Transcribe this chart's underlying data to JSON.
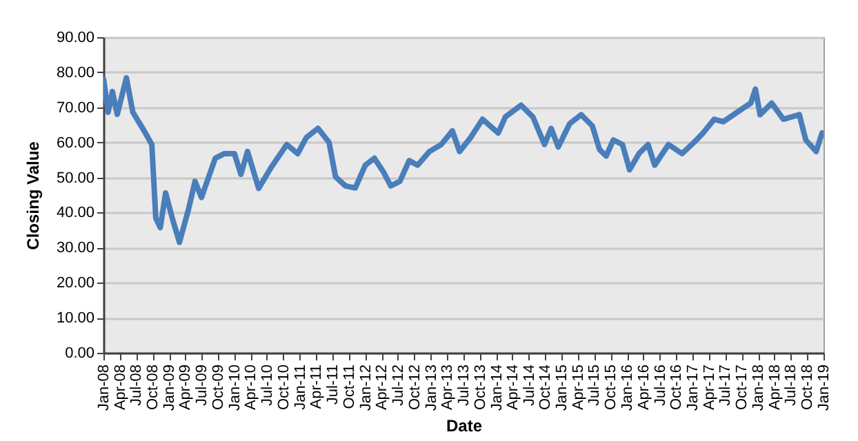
{
  "chart_data": {
    "type": "line",
    "xlabel": "Date",
    "ylabel": "Closing Value",
    "grid": "y",
    "x": [
      "2008-01-02",
      "2008-01-27",
      "2008-02-20",
      "2008-03-18",
      "2008-05-08",
      "2008-06-13",
      "2008-08-07",
      "2008-09-27",
      "2008-10-19",
      "2008-11-13",
      "2008-12-13",
      "2009-01-19",
      "2009-02-28",
      "2009-04-20",
      "2009-05-26",
      "2009-07-01",
      "2009-09-16",
      "2009-11-06",
      "2010-01-01",
      "2010-02-06",
      "2010-03-15",
      "2010-05-16",
      "2010-07-24",
      "2010-10-20",
      "2010-12-20",
      "2011-02-06",
      "2011-04-12",
      "2011-06-13",
      "2011-07-19",
      "2011-09-12",
      "2011-11-06",
      "2012-01-01",
      "2012-02-21",
      "2012-04-12",
      "2012-05-22",
      "2012-07-12",
      "2012-09-02",
      "2012-10-19",
      "2012-12-24",
      "2013-02-28",
      "2013-05-01",
      "2013-06-10",
      "2013-08-11",
      "2013-10-16",
      "2014-01-12",
      "2014-02-21",
      "2014-05-19",
      "2014-07-24",
      "2014-09-27",
      "2014-11-03",
      "2014-12-13",
      "2015-02-14",
      "2015-04-20",
      "2015-06-21",
      "2015-07-31",
      "2015-09-06",
      "2015-10-16",
      "2015-12-06",
      "2016-01-15",
      "2016-03-07",
      "2016-04-27",
      "2016-06-03",
      "2016-08-19",
      "2016-11-03",
      "2017-01-08",
      "2017-02-28",
      "2017-05-01",
      "2017-06-21",
      "2017-09-06",
      "2017-11-21",
      "2017-12-17",
      "2018-01-12",
      "2018-03-18",
      "2018-05-22",
      "2018-08-19",
      "2018-09-24",
      "2018-11-21",
      "2018-12-24"
    ],
    "series": [
      {
        "color": "#4a7ebb",
        "values": [
          78,
          68.6,
          74.5,
          68,
          78.4,
          68.6,
          64,
          59.4,
          38.4,
          35.7,
          45.6,
          38.4,
          31.5,
          41,
          48.9,
          44.3,
          55.5,
          56.8,
          56.8,
          50.9,
          57.4,
          46.9,
          52.8,
          59.4,
          56.8,
          61.4,
          64,
          60,
          50.2,
          47.6,
          47,
          53.5,
          55.5,
          51.5,
          47.6,
          48.9,
          54.8,
          53.5,
          57.4,
          59.4,
          63.3,
          57.4,
          61.4,
          66.6,
          62.7,
          67.3,
          70.6,
          67.3,
          59.4,
          64,
          58.7,
          65.3,
          67.9,
          64.7,
          58,
          56.1,
          60.7,
          59.4,
          52.2,
          56.8,
          59.4,
          53.5,
          59.4,
          56.8,
          60,
          62.7,
          66.6,
          65.9,
          68.6,
          71.2,
          75.2,
          67.9,
          71.2,
          66.6,
          67.9,
          60.7,
          57.4,
          62.7
        ]
      }
    ],
    "xlim": [
      "2008-01-01",
      "2019-01-01"
    ],
    "xticks": [
      {
        "value": "2008-01",
        "label": "Jan-08"
      },
      {
        "value": "2008-04",
        "label": "Apr-08"
      },
      {
        "value": "2008-07",
        "label": "Jul-08"
      },
      {
        "value": "2008-10",
        "label": "Oct-08"
      },
      {
        "value": "2009-01",
        "label": "Jan-09"
      },
      {
        "value": "2009-04",
        "label": "Apr-09"
      },
      {
        "value": "2009-07",
        "label": "Jul-09"
      },
      {
        "value": "2009-10",
        "label": "Oct-09"
      },
      {
        "value": "2010-01",
        "label": "Jan-10"
      },
      {
        "value": "2010-04",
        "label": "Apr-10"
      },
      {
        "value": "2010-07",
        "label": "Jul-10"
      },
      {
        "value": "2010-10",
        "label": "Oct-10"
      },
      {
        "value": "2011-01",
        "label": "Jan-11"
      },
      {
        "value": "2011-04",
        "label": "Apr-11"
      },
      {
        "value": "2011-07",
        "label": "Jul-11"
      },
      {
        "value": "2011-10",
        "label": "Oct-11"
      },
      {
        "value": "2012-01",
        "label": "Jan-12"
      },
      {
        "value": "2012-04",
        "label": "Apr-12"
      },
      {
        "value": "2012-07",
        "label": "Jul-12"
      },
      {
        "value": "2012-10",
        "label": "Oct-12"
      },
      {
        "value": "2013-01",
        "label": "Jan-13"
      },
      {
        "value": "2013-04",
        "label": "Apr-13"
      },
      {
        "value": "2013-07",
        "label": "Jul-13"
      },
      {
        "value": "2013-10",
        "label": "Oct-13"
      },
      {
        "value": "2014-01",
        "label": "Jan-14"
      },
      {
        "value": "2014-04",
        "label": "Apr-14"
      },
      {
        "value": "2014-07",
        "label": "Jul-14"
      },
      {
        "value": "2014-10",
        "label": "Oct-14"
      },
      {
        "value": "2015-01",
        "label": "Jan-15"
      },
      {
        "value": "2015-04",
        "label": "Apr-15"
      },
      {
        "value": "2015-07",
        "label": "Jul-15"
      },
      {
        "value": "2015-10",
        "label": "Oct-15"
      },
      {
        "value": "2016-01",
        "label": "Jan-16"
      },
      {
        "value": "2016-04",
        "label": "Apr-16"
      },
      {
        "value": "2016-07",
        "label": "Jul-16"
      },
      {
        "value": "2016-10",
        "label": "Oct-16"
      },
      {
        "value": "2017-01",
        "label": "Jan-17"
      },
      {
        "value": "2017-04",
        "label": "Apr-17"
      },
      {
        "value": "2017-07",
        "label": "Jul-17"
      },
      {
        "value": "2017-10",
        "label": "Oct-17"
      },
      {
        "value": "2018-01",
        "label": "Jan-18"
      },
      {
        "value": "2018-04",
        "label": "Apr-18"
      },
      {
        "value": "2018-07",
        "label": "Jul-18"
      },
      {
        "value": "2018-10",
        "label": "Oct-18"
      },
      {
        "value": "2019-01",
        "label": "Jan-19"
      }
    ],
    "ylim": [
      0,
      90
    ],
    "yticks": [
      {
        "value": 0,
        "label": "0.00"
      },
      {
        "value": 10,
        "label": "10.00"
      },
      {
        "value": 20,
        "label": "20.00"
      },
      {
        "value": 30,
        "label": "30.00"
      },
      {
        "value": 40,
        "label": "40.00"
      },
      {
        "value": 50,
        "label": "50.00"
      },
      {
        "value": 60,
        "label": "60.00"
      },
      {
        "value": 70,
        "label": "70.00"
      },
      {
        "value": 80,
        "label": "80.00"
      },
      {
        "value": 90,
        "label": "90.00"
      }
    ]
  }
}
